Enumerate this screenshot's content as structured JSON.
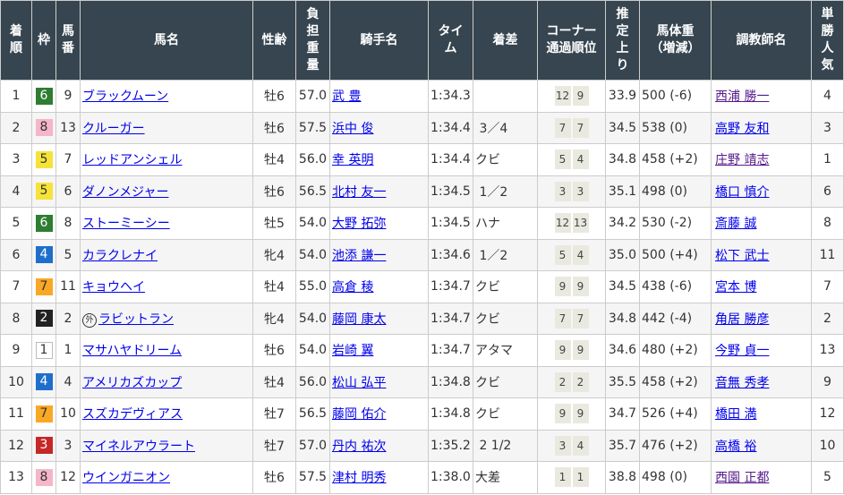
{
  "headers": {
    "rank": "着順",
    "waku": "枠",
    "umaban": "馬番",
    "horse": "馬名",
    "sexage": "性齢",
    "weight": "負担重量",
    "jockey": "騎手名",
    "time": "タイム",
    "margin": "着差",
    "corner_line1": "コーナー",
    "corner_line2": "通過順位",
    "last3f": "推定上り",
    "body_line1": "馬体重",
    "body_line2": "（増減）",
    "trainer": "調教師名",
    "pop": "単勝人気"
  },
  "waku_colors": {
    "1": "#ffffff",
    "2": "#222222",
    "3": "#c62828",
    "4": "#1e6fcc",
    "5": "#f5e33a",
    "6": "#2e7d32",
    "7": "#f9a825",
    "8": "#f4b6c8"
  },
  "rows": [
    {
      "rank": "1",
      "waku": "6",
      "umaban": "9",
      "horse": "ブラックムーン",
      "mark": "",
      "sexage": "牡6",
      "weight": "57.0",
      "jockey": "武 豊",
      "time": "1:34.3",
      "margin": "",
      "corner": [
        "12",
        "9"
      ],
      "last3f": "33.9",
      "body": "500",
      "diff": "(-6)",
      "trainer": "西浦 勝一",
      "trainer_visited": true,
      "pop": "4"
    },
    {
      "rank": "2",
      "waku": "8",
      "umaban": "13",
      "horse": "クルーガー",
      "mark": "",
      "sexage": "牡6",
      "weight": "57.5",
      "jockey": "浜中 俊",
      "time": "1:34.4",
      "margin": " 3／4",
      "corner": [
        "7",
        "7"
      ],
      "last3f": "34.5",
      "body": "538",
      "diff": "(0)",
      "trainer": "高野 友和",
      "pop": "3"
    },
    {
      "rank": "3",
      "waku": "5",
      "umaban": "7",
      "horse": "レッドアンシェル",
      "mark": "",
      "sexage": "牡4",
      "weight": "56.0",
      "jockey": "幸 英明",
      "time": "1:34.4",
      "margin": "クビ",
      "corner": [
        "5",
        "4"
      ],
      "last3f": "34.8",
      "body": "458",
      "diff": "(+2)",
      "trainer": "庄野 靖志",
      "trainer_visited": true,
      "pop": "1"
    },
    {
      "rank": "4",
      "waku": "5",
      "umaban": "6",
      "horse": "ダノンメジャー",
      "mark": "",
      "sexage": "牡6",
      "weight": "56.5",
      "jockey": "北村 友一",
      "time": "1:34.5",
      "margin": " 1／2",
      "corner": [
        "3",
        "3"
      ],
      "last3f": "35.1",
      "body": "498",
      "diff": "(0)",
      "trainer": "橋口 慎介",
      "pop": "6"
    },
    {
      "rank": "5",
      "waku": "6",
      "umaban": "8",
      "horse": "ストーミーシー",
      "mark": "",
      "sexage": "牡5",
      "weight": "54.0",
      "jockey": "大野 拓弥",
      "time": "1:34.5",
      "margin": "ハナ",
      "corner": [
        "12",
        "13"
      ],
      "last3f": "34.2",
      "body": "530",
      "diff": "(-2)",
      "trainer": "斎藤 誠",
      "pop": "8"
    },
    {
      "rank": "6",
      "waku": "4",
      "umaban": "5",
      "horse": "カラクレナイ",
      "mark": "",
      "sexage": "牝4",
      "weight": "54.0",
      "jockey": "池添 謙一",
      "time": "1:34.6",
      "margin": " 1／2",
      "corner": [
        "5",
        "4"
      ],
      "last3f": "35.0",
      "body": "500",
      "diff": "(+4)",
      "trainer": "松下 武士",
      "pop": "11"
    },
    {
      "rank": "7",
      "waku": "7",
      "umaban": "11",
      "horse": "キョウヘイ",
      "mark": "",
      "sexage": "牡4",
      "weight": "55.0",
      "jockey": "高倉 稜",
      "time": "1:34.7",
      "margin": "クビ",
      "corner": [
        "9",
        "9"
      ],
      "last3f": "34.5",
      "body": "438",
      "diff": "(-6)",
      "trainer": "宮本 博",
      "pop": "7"
    },
    {
      "rank": "8",
      "waku": "2",
      "umaban": "2",
      "horse": "ラビットラン",
      "mark": "外",
      "sexage": "牝4",
      "weight": "54.0",
      "jockey": "藤岡 康太",
      "time": "1:34.7",
      "margin": "クビ",
      "corner": [
        "7",
        "7"
      ],
      "last3f": "34.8",
      "body": "442",
      "diff": "(-4)",
      "trainer": "角居 勝彦",
      "pop": "2"
    },
    {
      "rank": "9",
      "waku": "1",
      "umaban": "1",
      "horse": "マサハヤドリーム",
      "mark": "",
      "sexage": "牡6",
      "weight": "54.0",
      "jockey": "岩崎 翼",
      "time": "1:34.7",
      "margin": "アタマ",
      "corner": [
        "9",
        "9"
      ],
      "last3f": "34.6",
      "body": "480",
      "diff": "(+2)",
      "trainer": "今野 貞一",
      "pop": "13"
    },
    {
      "rank": "10",
      "waku": "4",
      "umaban": "4",
      "horse": "アメリカズカップ",
      "mark": "",
      "sexage": "牡4",
      "weight": "56.0",
      "jockey": "松山 弘平",
      "time": "1:34.8",
      "margin": "クビ",
      "corner": [
        "2",
        "2"
      ],
      "last3f": "35.5",
      "body": "458",
      "diff": "(+2)",
      "trainer": "音無 秀孝",
      "pop": "9"
    },
    {
      "rank": "11",
      "waku": "7",
      "umaban": "10",
      "horse": "スズカデヴィアス",
      "mark": "",
      "sexage": "牡7",
      "weight": "56.5",
      "jockey": "藤岡 佑介",
      "time": "1:34.8",
      "margin": "クビ",
      "corner": [
        "9",
        "9"
      ],
      "last3f": "34.7",
      "body": "526",
      "diff": "(+4)",
      "trainer": "橋田 満",
      "pop": "12"
    },
    {
      "rank": "12",
      "waku": "3",
      "umaban": "3",
      "horse": "マイネルアウラート",
      "mark": "",
      "sexage": "牡7",
      "weight": "57.0",
      "jockey": "丹内 祐次",
      "time": "1:35.2",
      "margin": " 2 1/2",
      "corner": [
        "3",
        "4"
      ],
      "last3f": "35.7",
      "body": "476",
      "diff": "(+2)",
      "trainer": "高橋 裕",
      "pop": "10"
    },
    {
      "rank": "13",
      "waku": "8",
      "umaban": "12",
      "horse": "ウインガニオン",
      "mark": "",
      "sexage": "牡6",
      "weight": "57.5",
      "jockey": "津村 明秀",
      "time": "1:38.0",
      "margin": "大差",
      "corner": [
        "1",
        "1"
      ],
      "last3f": "38.8",
      "body": "498",
      "diff": "(0)",
      "trainer": "西園 正都",
      "trainer_visited": true,
      "pop": "5"
    }
  ]
}
